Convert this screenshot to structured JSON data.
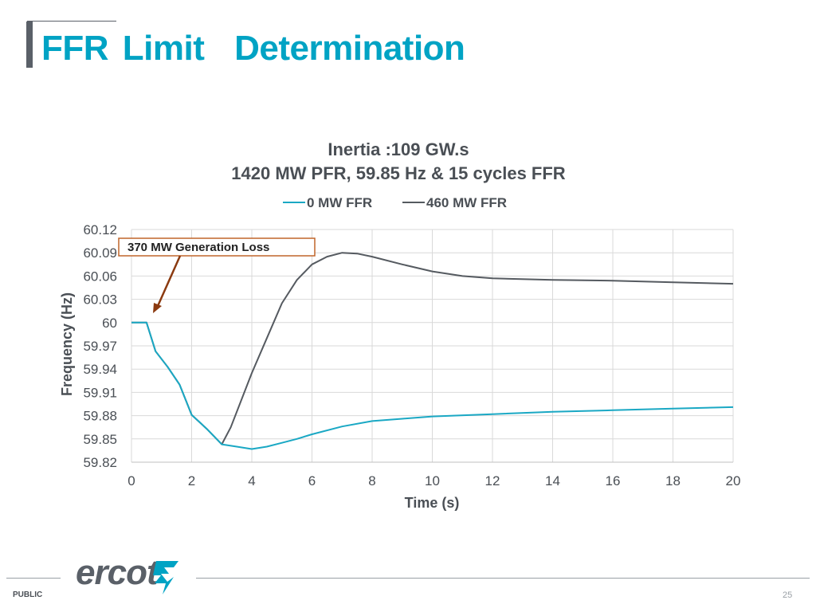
{
  "slide": {
    "title_words": [
      "FFR",
      "Limit",
      "Determination"
    ],
    "footer_label": "PUBLIC",
    "page_number": "25",
    "logo_text": "ercot",
    "logo_icon": "ercot-bolt-icon",
    "accent_color": "#00a3c4",
    "gray_color": "#5a6068"
  },
  "chart_data": {
    "type": "line",
    "title": [
      "Inertia :109 GW.s",
      "1420 MW PFR, 59.85 Hz & 15 cycles FFR"
    ],
    "xlabel": "Time (s)",
    "ylabel": "Frequency (Hz)",
    "xlim": [
      0,
      20
    ],
    "ylim": [
      59.82,
      60.12
    ],
    "xticks": [
      "0",
      "2",
      "4",
      "6",
      "8",
      "10",
      "12",
      "14",
      "16",
      "18",
      "20"
    ],
    "yticks": [
      "60.12",
      "60.09",
      "60.06",
      "60.03",
      "60",
      "59.97",
      "59.94",
      "59.91",
      "59.88",
      "59.85",
      "59.82"
    ],
    "grid": true,
    "legend": "top",
    "annotation": "370 MW Generation Loss",
    "series": [
      {
        "name": "0 MW FFR",
        "color": "#1aa8c4",
        "x": [
          0,
          0.5,
          0.8,
          1.2,
          1.6,
          2.0,
          2.5,
          3.0,
          3.5,
          4.0,
          4.5,
          5.0,
          5.5,
          6.0,
          7.0,
          8.0,
          9.0,
          10.0,
          12.0,
          14.0,
          16.0,
          18.0,
          20.0
        ],
        "values": [
          60.0,
          60.0,
          59.963,
          59.943,
          59.92,
          59.881,
          59.863,
          59.843,
          59.84,
          59.837,
          59.84,
          59.845,
          59.85,
          59.856,
          59.866,
          59.873,
          59.876,
          59.879,
          59.882,
          59.885,
          59.887,
          59.889,
          59.891
        ]
      },
      {
        "name": "460 MW FFR",
        "color": "#555a60",
        "x": [
          0,
          0.5,
          0.8,
          1.2,
          1.6,
          2.0,
          2.5,
          3.0,
          3.3,
          4.0,
          4.5,
          5.0,
          5.5,
          6.0,
          6.5,
          7.0,
          7.5,
          8.0,
          9.0,
          10.0,
          11.0,
          12.0,
          14.0,
          16.0,
          18.0,
          20.0
        ],
        "values": [
          60.0,
          60.0,
          59.963,
          59.943,
          59.92,
          59.881,
          59.863,
          59.843,
          59.865,
          59.935,
          59.98,
          60.025,
          60.055,
          60.075,
          60.085,
          60.09,
          60.089,
          60.085,
          60.075,
          60.066,
          60.06,
          60.057,
          60.055,
          60.054,
          60.052,
          60.05
        ]
      }
    ]
  }
}
